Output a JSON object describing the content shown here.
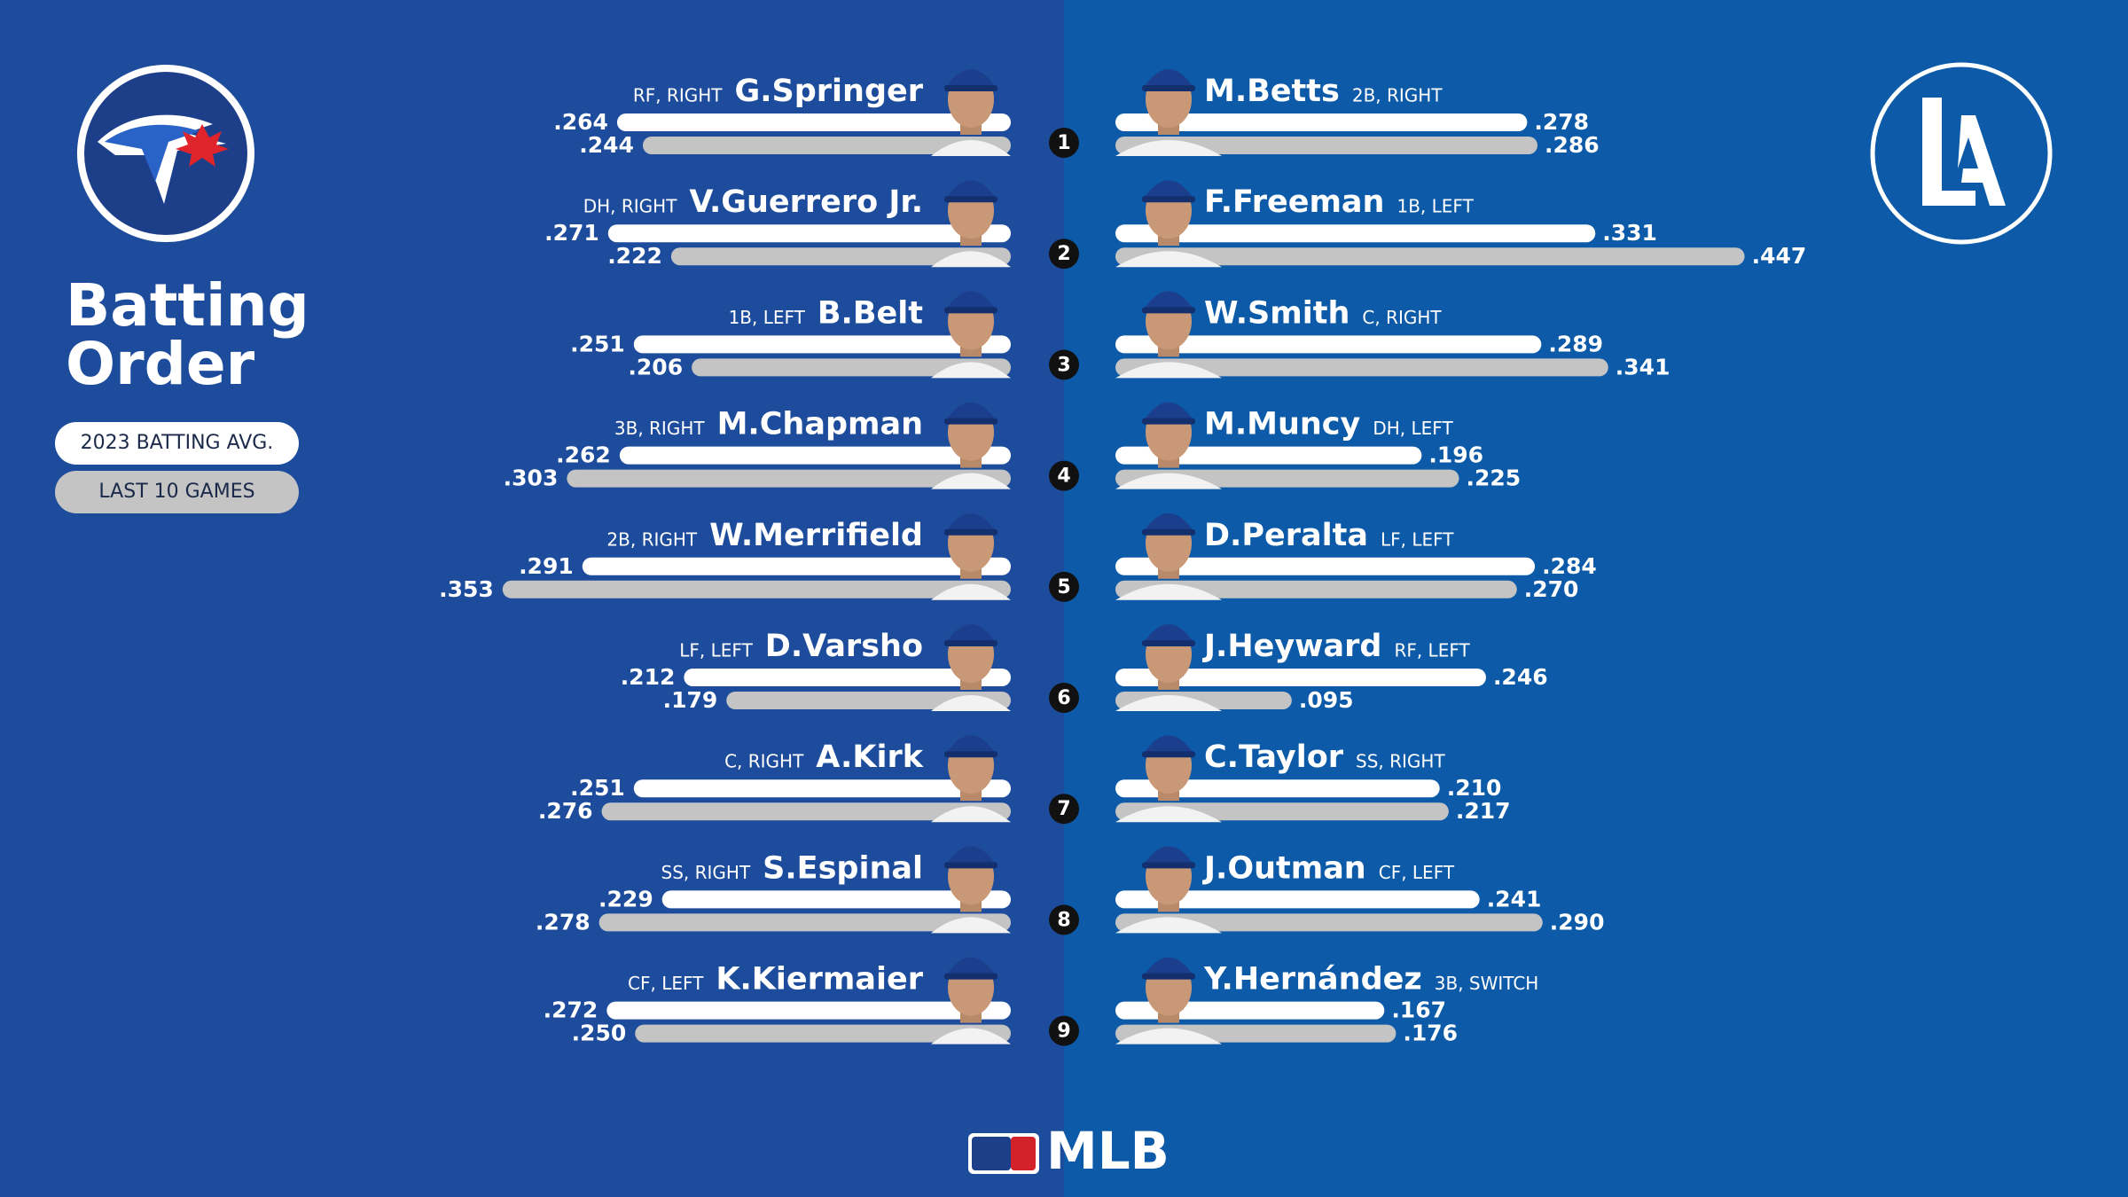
{
  "chart_data": {
    "type": "diverging-bar",
    "title": "Batting Order",
    "categories": [
      "1",
      "2",
      "3",
      "4",
      "5",
      "6",
      "7",
      "8",
      "9"
    ],
    "series": [
      {
        "name": "2023 BATTING AVG.",
        "color": "#ffffff"
      },
      {
        "name": "LAST 10 GAMES",
        "color": "#c4c4c4"
      }
    ],
    "teams": [
      {
        "players": [
          {
            "name": "G.Springer",
            "position": "RF, RIGHT",
            "values": [
              0.264,
              0.244
            ],
            "value_labels": [
              ".264",
              ".244"
            ]
          },
          {
            "name": "V.Guerrero Jr.",
            "position": "DH, RIGHT",
            "values": [
              0.271,
              0.222
            ],
            "value_labels": [
              ".271",
              ".222"
            ]
          },
          {
            "name": "B.Belt",
            "position": "1B, LEFT",
            "values": [
              0.251,
              0.206
            ],
            "value_labels": [
              ".251",
              ".206"
            ]
          },
          {
            "name": "M.Chapman",
            "position": "3B, RIGHT",
            "values": [
              0.262,
              0.303
            ],
            "value_labels": [
              ".262",
              ".303"
            ]
          },
          {
            "name": "W.Merrifield",
            "position": "2B, RIGHT",
            "values": [
              0.291,
              0.353
            ],
            "value_labels": [
              ".291",
              ".353"
            ]
          },
          {
            "name": "D.Varsho",
            "position": "LF, LEFT",
            "values": [
              0.212,
              0.179
            ],
            "value_labels": [
              ".212",
              ".179"
            ]
          },
          {
            "name": "A.Kirk",
            "position": "C, RIGHT",
            "values": [
              0.251,
              0.276
            ],
            "value_labels": [
              ".251",
              ".276"
            ]
          },
          {
            "name": "S.Espinal",
            "position": "SS, RIGHT",
            "values": [
              0.229,
              0.278
            ],
            "value_labels": [
              ".229",
              ".278"
            ]
          },
          {
            "name": "K.Kiermaier",
            "position": "CF, LEFT",
            "values": [
              0.272,
              0.25
            ],
            "value_labels": [
              ".272",
              ".250"
            ]
          }
        ]
      },
      {
        "players": [
          {
            "name": "M.Betts",
            "position": "2B, RIGHT",
            "values": [
              0.278,
              0.286
            ],
            "value_labels": [
              ".278",
              ".286"
            ]
          },
          {
            "name": "F.Freeman",
            "position": "1B, LEFT",
            "values": [
              0.331,
              0.447
            ],
            "value_labels": [
              ".331",
              ".447"
            ]
          },
          {
            "name": "W.Smith",
            "position": "C, RIGHT",
            "values": [
              0.289,
              0.341
            ],
            "value_labels": [
              ".289",
              ".341"
            ]
          },
          {
            "name": "M.Muncy",
            "position": "DH, LEFT",
            "values": [
              0.196,
              0.225
            ],
            "value_labels": [
              ".196",
              ".225"
            ]
          },
          {
            "name": "D.Peralta",
            "position": "LF, LEFT",
            "values": [
              0.284,
              0.27
            ],
            "value_labels": [
              ".284",
              ".270"
            ]
          },
          {
            "name": "J.Heyward",
            "position": "RF, LEFT",
            "values": [
              0.246,
              0.095
            ],
            "value_labels": [
              ".246",
              ".095"
            ]
          },
          {
            "name": "C.Taylor",
            "position": "SS, RIGHT",
            "values": [
              0.21,
              0.217
            ],
            "value_labels": [
              ".210",
              ".217"
            ]
          },
          {
            "name": "J.Outman",
            "position": "CF, LEFT",
            "values": [
              0.241,
              0.29
            ],
            "value_labels": [
              ".241",
              ".290"
            ]
          },
          {
            "name": "Y.Hernández",
            "position": "3B, SWITCH",
            "values": [
              0.167,
              0.176
            ],
            "value_labels": [
              ".167",
              ".176"
            ]
          }
        ]
      }
    ]
  },
  "footer": {
    "brand": "MLB"
  }
}
